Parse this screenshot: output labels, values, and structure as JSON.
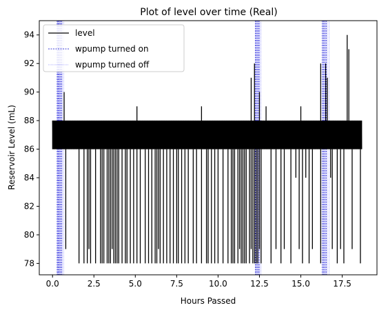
{
  "chart_data": {
    "type": "line",
    "title": "Plot of level over time (Real)",
    "xlabel": "Hours Passed",
    "ylabel": "Reservoir Level (mL)",
    "xlim": [
      -0.8,
      19.6
    ],
    "ylim": [
      77.2,
      95.0
    ],
    "x_ticks": [
      0.0,
      2.5,
      5.0,
      7.5,
      10.0,
      12.5,
      15.0,
      17.5
    ],
    "x_tick_labels": [
      "0.0",
      "2.5",
      "5.0",
      "7.5",
      "10.0",
      "12.5",
      "15.0",
      "17.5"
    ],
    "y_ticks": [
      78,
      80,
      82,
      84,
      86,
      88,
      90,
      92,
      94
    ],
    "y_tick_labels": [
      "78",
      "80",
      "82",
      "84",
      "86",
      "88",
      "90",
      "92",
      "94"
    ],
    "grid": false,
    "legend_position": "upper-left",
    "colors": {
      "level": "#000000",
      "pump_on": "#0000cc",
      "pump_off": "#3333ff"
    },
    "series": [
      {
        "name": "level",
        "style": "solid",
        "time_range": [
          0.0,
          18.7
        ],
        "band": [
          86,
          88
        ],
        "dips_to_78": [
          1.6,
          1.9,
          2.1,
          2.3,
          2.6,
          2.9,
          3.0,
          3.1,
          3.3,
          3.4,
          3.5,
          3.7,
          3.8,
          3.9,
          4.0,
          4.2,
          4.4,
          4.5,
          4.7,
          4.9,
          5.1,
          5.3,
          5.6,
          5.8,
          6.0,
          6.2,
          6.3,
          6.5,
          6.7,
          6.9,
          7.1,
          7.3,
          7.5,
          7.6,
          7.8,
          8.0,
          8.2,
          8.5,
          8.7,
          9.0,
          9.3,
          9.4,
          9.6,
          9.8,
          10.0,
          10.3,
          10.6,
          10.8,
          10.9,
          11.0,
          11.2,
          11.4,
          11.5,
          11.6,
          11.7,
          11.9,
          12.1,
          12.2,
          12.3,
          12.4,
          12.6,
          13.2,
          13.8,
          14.4,
          15.1,
          15.5,
          16.2,
          17.2,
          17.6,
          18.6
        ],
        "dips_to_79": [
          0.8,
          2.2,
          3.6,
          6.4,
          11.3,
          12.0,
          12.5,
          13.5,
          14.0,
          14.9,
          15.7,
          16.9,
          17.4,
          18.1
        ],
        "dips_to_84": [
          14.7,
          15.3,
          16.8
        ],
        "spikes": [
          [
            0.7,
            90
          ],
          [
            5.1,
            89
          ],
          [
            9.0,
            89
          ],
          [
            12.0,
            91
          ],
          [
            12.2,
            92
          ],
          [
            12.5,
            90
          ],
          [
            12.9,
            89
          ],
          [
            15.0,
            89
          ],
          [
            16.2,
            92
          ],
          [
            16.5,
            92
          ],
          [
            16.6,
            91
          ],
          [
            17.8,
            94
          ],
          [
            17.9,
            93
          ]
        ]
      },
      {
        "name": "wpump turned on",
        "style": "dashed",
        "event_times": [
          0.28,
          0.33,
          0.4,
          0.47,
          0.55,
          12.25,
          12.32,
          12.4,
          12.48,
          16.3,
          16.38,
          16.46,
          16.55
        ]
      },
      {
        "name": "wpump turned off",
        "style": "dotted",
        "event_times": [
          0.3,
          0.37,
          0.44,
          0.52,
          0.6,
          0.68,
          12.28,
          12.36,
          12.44,
          12.52,
          12.6,
          16.34,
          16.42,
          16.5,
          16.6,
          16.7
        ]
      }
    ]
  }
}
